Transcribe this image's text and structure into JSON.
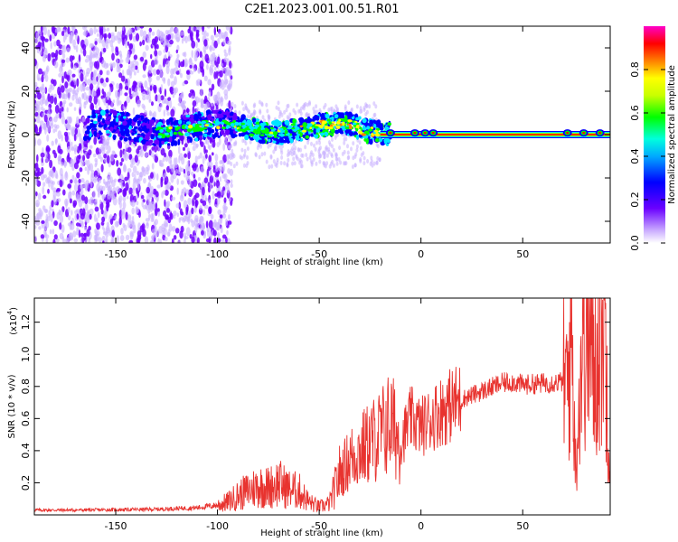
{
  "title": "C2E1.2023.001.00.51.R01",
  "colors": {
    "spectrogram_background": "#ffffff",
    "line_series": "#e8332f",
    "colormap": [
      "#ffffff",
      "#6a00ff",
      "#0000ff",
      "#00e5ff",
      "#00ff00",
      "#ffff00",
      "#ff8000",
      "#ff0000",
      "#ff00c8"
    ]
  },
  "chart_data": [
    {
      "type": "heatmap",
      "xlabel": "Height of straight line (km)",
      "ylabel": "Frequency (Hz)",
      "xlim": [
        -190,
        93
      ],
      "ylim": [
        -50,
        50
      ],
      "xticks": [
        -150,
        -100,
        -50,
        0,
        50
      ],
      "yticks": [
        -40,
        -20,
        0,
        20,
        40
      ],
      "colorbar": {
        "label": "Normalized spectral amplitude",
        "range": [
          0.0,
          1.0
        ],
        "ticks": [
          "0.0",
          "0.2",
          "0.4",
          "0.6",
          "0.8"
        ]
      },
      "description_values": {
        "line_frequency_hz": 0,
        "noise_region_x": [
          -190,
          -95
        ],
        "drift_region_x": [
          -95,
          -20
        ],
        "strong_signal_x": [
          -20,
          93
        ]
      }
    },
    {
      "type": "line",
      "xlabel": "Height of straight line (km)",
      "ylabel": "SNR (10 * v/v)",
      "y_scale_label": "(x10",
      "y_scale_exponent": "4",
      "xlim": [
        -190,
        93
      ],
      "ylim": [
        0,
        13500
      ],
      "xticks": [
        -150,
        -100,
        -50,
        0,
        50
      ],
      "yticks": [
        2000,
        4000,
        6000,
        8000,
        10000,
        12000
      ],
      "ytick_labels": [
        "0.2",
        "0.4",
        "0.6",
        "0.8",
        "1.0",
        "1.2"
      ],
      "series": [
        {
          "x": [
            -190,
            -170,
            -150,
            -130,
            -110,
            -100,
            -95,
            -90,
            -80,
            -75,
            -70,
            -65,
            -60,
            -55,
            -50,
            -45,
            -40,
            -35,
            -30,
            -25,
            -20,
            -15,
            -10,
            -5,
            0,
            10,
            20,
            30,
            40,
            45,
            50,
            60,
            70,
            72,
            74,
            76,
            80,
            85,
            90,
            93
          ],
          "y": [
            300,
            300,
            320,
            350,
            450,
            600,
            800,
            1200,
            1800,
            1700,
            2000,
            1600,
            1500,
            800,
            500,
            700,
            2500,
            3500,
            4000,
            4500,
            5000,
            5800,
            4500,
            6000,
            5500,
            6500,
            7200,
            7700,
            8200,
            8300,
            8100,
            8200,
            8300,
            8000,
            12000,
            3000,
            12500,
            9000,
            13000,
            3000
          ]
        }
      ]
    }
  ]
}
